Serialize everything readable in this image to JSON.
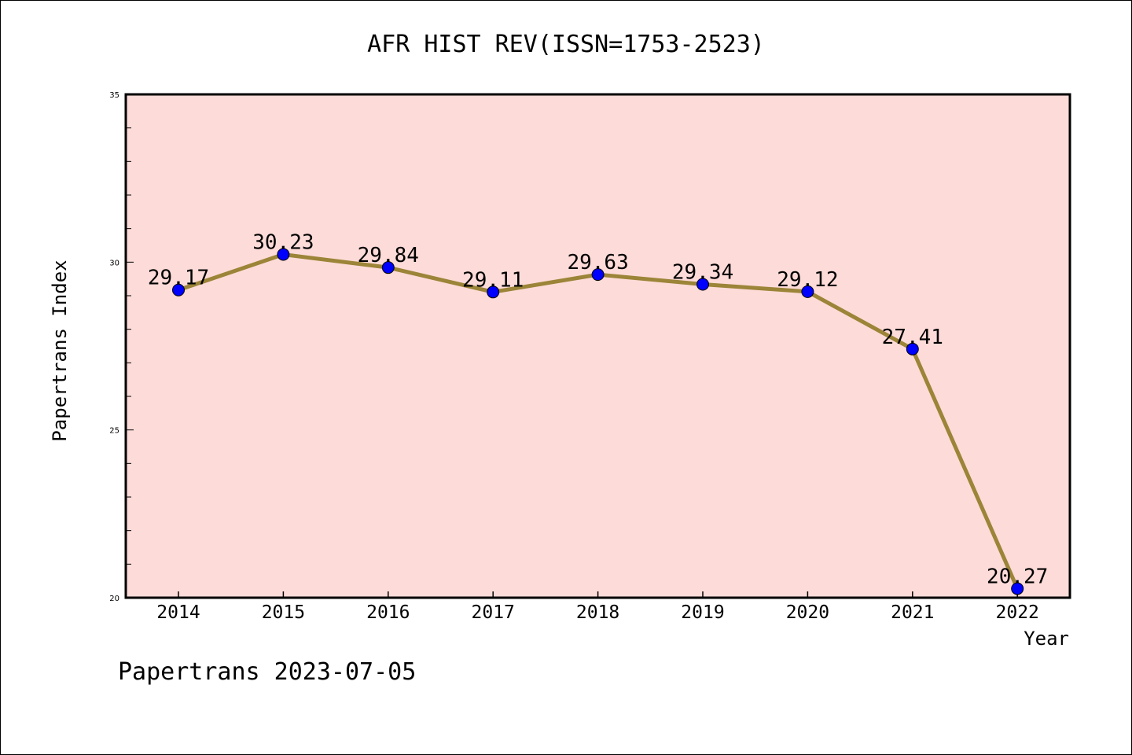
{
  "chart_data": {
    "type": "line",
    "title": "AFR HIST REV(ISSN=1753-2523)",
    "xlabel": "Year",
    "ylabel": "Papertrans Index",
    "categories": [
      "2014",
      "2015",
      "2016",
      "2017",
      "2018",
      "2019",
      "2020",
      "2021",
      "2022"
    ],
    "series": [
      {
        "values": [
          29.17,
          30.23,
          29.84,
          29.11,
          29.63,
          29.34,
          29.12,
          27.41,
          20.27
        ],
        "labels": [
          "29.17",
          "30.23",
          "29.84",
          "29.11",
          "29.63",
          "29.34",
          "29.12",
          "27.41",
          "20.27"
        ],
        "line_color": "#9c8438",
        "marker_color": "#0000ff"
      }
    ],
    "ylim": [
      20,
      35
    ],
    "yticks": [
      "20",
      "25",
      "30",
      "35"
    ],
    "plot_background": "#fddbd8",
    "grid": false,
    "legend": "none"
  },
  "footer": "Papertrans 2023-07-05"
}
